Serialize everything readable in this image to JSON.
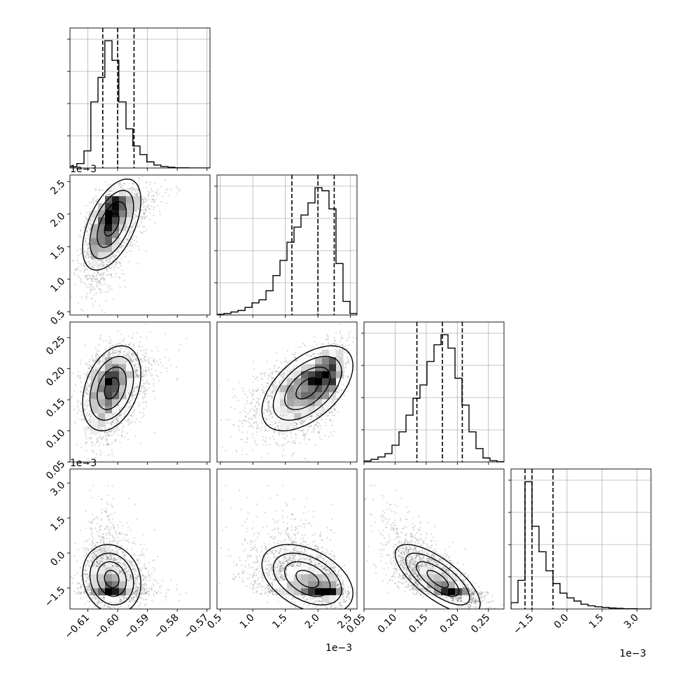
{
  "chart_data": {
    "type": "corner",
    "grid": true,
    "quantiles": [
      0.16,
      0.5,
      0.84
    ],
    "params": [
      {
        "range": [
          -0.616,
          -0.569
        ],
        "ticks": [
          -0.61,
          -0.6,
          -0.59,
          -0.58,
          -0.57
        ],
        "tick_labels": [
          "−0.61",
          "−0.60",
          "−0.59",
          "−0.58",
          "−0.57"
        ],
        "offset_label": "",
        "quantile_values": [
          -0.605,
          -0.6,
          -0.5945
        ]
      },
      {
        "range": [
          0.45,
          2.6
        ],
        "ticks": [
          0.5,
          1.0,
          1.5,
          2.0,
          2.5
        ],
        "tick_labels": [
          "0.5",
          "1.0",
          "1.5",
          "2.0",
          "2.5"
        ],
        "offset_label": "1e−3",
        "quantile_values": [
          1.6,
          2.0,
          2.25
        ]
      },
      {
        "range": [
          0.05,
          0.275
        ],
        "ticks": [
          0.05,
          0.1,
          0.15,
          0.2,
          0.25
        ],
        "tick_labels": [
          "0.05",
          "0.10",
          "0.15",
          "0.20",
          "0.25"
        ],
        "offset_label": "1e−3",
        "quantile_values": [
          0.135,
          0.176,
          0.208
        ]
      },
      {
        "range": [
          -2.4,
          3.6
        ],
        "ticks": [
          -1.5,
          0.0,
          1.5,
          3.0
        ],
        "tick_labels": [
          "−1.5",
          "0.0",
          "1.5",
          "3.0"
        ],
        "offset_label": "1e−3",
        "quantile_values": [
          -1.8,
          -1.5,
          -0.6
        ]
      }
    ],
    "histograms": [
      {
        "bin_edges": [
          -0.616,
          -0.6137,
          -0.6113,
          -0.609,
          -0.6066,
          -0.6043,
          -0.6019,
          -0.5996,
          -0.5972,
          -0.5949,
          -0.5925,
          -0.5902,
          -0.5878,
          -0.5855,
          -0.5831,
          -0.5808,
          -0.5784,
          -0.5761,
          -0.5737,
          -0.5714,
          -0.569
        ],
        "counts": [
          5,
          18,
          70,
          270,
          370,
          520,
          440,
          270,
          160,
          90,
          55,
          25,
          12,
          6,
          3,
          1,
          1,
          0,
          0,
          0
        ]
      },
      {
        "bin_edges": [
          0.45,
          0.5575,
          0.665,
          0.7725,
          0.88,
          0.9875,
          1.095,
          1.2025,
          1.31,
          1.4175,
          1.525,
          1.6325,
          1.74,
          1.8475,
          1.955,
          2.0625,
          2.17,
          2.2775,
          2.385,
          2.4925,
          2.6
        ],
        "counts": [
          2,
          5,
          10,
          15,
          25,
          40,
          50,
          80,
          130,
          180,
          240,
          290,
          330,
          370,
          420,
          410,
          350,
          170,
          45,
          5
        ]
      },
      {
        "bin_edges": [
          0.05,
          0.06125,
          0.0725,
          0.08375,
          0.095,
          0.10625,
          0.1175,
          0.12875,
          0.14,
          0.15125,
          0.1625,
          0.17375,
          0.185,
          0.19625,
          0.2075,
          0.21875,
          0.23,
          0.24125,
          0.2525,
          0.26375,
          0.275
        ],
        "counts": [
          3,
          8,
          15,
          25,
          50,
          90,
          140,
          190,
          230,
          300,
          350,
          380,
          340,
          250,
          170,
          90,
          40,
          12,
          4,
          1
        ]
      },
      {
        "bin_edges": [
          -2.4,
          -2.1,
          -1.8,
          -1.5,
          -1.2,
          -0.9,
          -0.6,
          -0.3,
          0.0,
          0.3,
          0.6,
          0.9,
          1.2,
          1.5,
          1.8,
          2.1,
          2.4,
          2.7,
          3.0,
          3.3,
          3.6
        ],
        "counts": [
          20,
          90,
          400,
          260,
          180,
          120,
          80,
          50,
          35,
          25,
          15,
          10,
          7,
          5,
          3,
          2,
          1,
          1,
          0,
          0
        ]
      }
    ]
  }
}
